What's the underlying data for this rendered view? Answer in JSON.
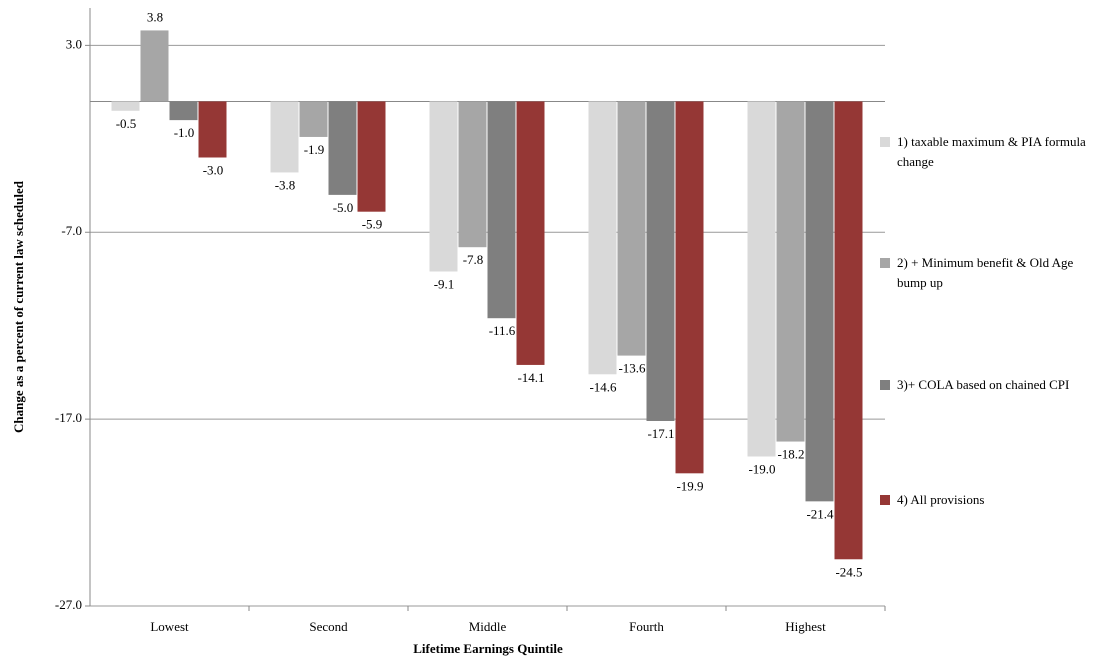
{
  "chart_data": {
    "type": "bar",
    "x_label": "Lifetime Earnings Quintile",
    "y_label": "Change as a percent of current law scheduled",
    "categories": [
      "Lowest",
      "Second",
      "Middle",
      "Fourth",
      "Highest"
    ],
    "series": [
      {
        "name": "1) taxable maximum & PIA formula change",
        "color": "#d9d9d9",
        "values": [
          -0.5,
          -3.8,
          -9.1,
          -14.6,
          -19.0
        ],
        "value_labels": [
          "-0.5",
          "-3.8",
          "-9.1",
          "-14.6",
          "-19.0"
        ]
      },
      {
        "name": "2) + Minimum benefit & Old Age bump up",
        "color": "#a6a6a6",
        "values": [
          3.8,
          -1.9,
          -7.8,
          -13.6,
          -18.2
        ],
        "value_labels": [
          "3.8",
          "-1.9",
          "-7.8",
          "-13.6",
          "-18.2"
        ]
      },
      {
        "name": "3)+ COLA based on chained CPI",
        "color": "#7f7f7f",
        "values": [
          -1.0,
          -5.0,
          -11.6,
          -17.1,
          -21.4
        ],
        "value_labels": [
          "-1.0",
          "-5.0",
          "-11.6",
          "-17.1",
          "-21.4"
        ]
      },
      {
        "name": "4) All provisions",
        "color": "#953735",
        "values": [
          -3.0,
          -5.9,
          -14.1,
          -19.9,
          -24.5
        ],
        "value_labels": [
          "-3.0",
          "-5.9",
          "-14.1",
          "-19.9",
          "-24.5"
        ]
      }
    ],
    "ylim": [
      -27,
      5
    ],
    "yticks": [
      {
        "value": 3,
        "label": "3.0"
      },
      {
        "value": -7,
        "label": "-7.0"
      },
      {
        "value": -17,
        "label": "-17.0"
      },
      {
        "value": -27,
        "label": "-27.0"
      }
    ],
    "grid": true
  }
}
